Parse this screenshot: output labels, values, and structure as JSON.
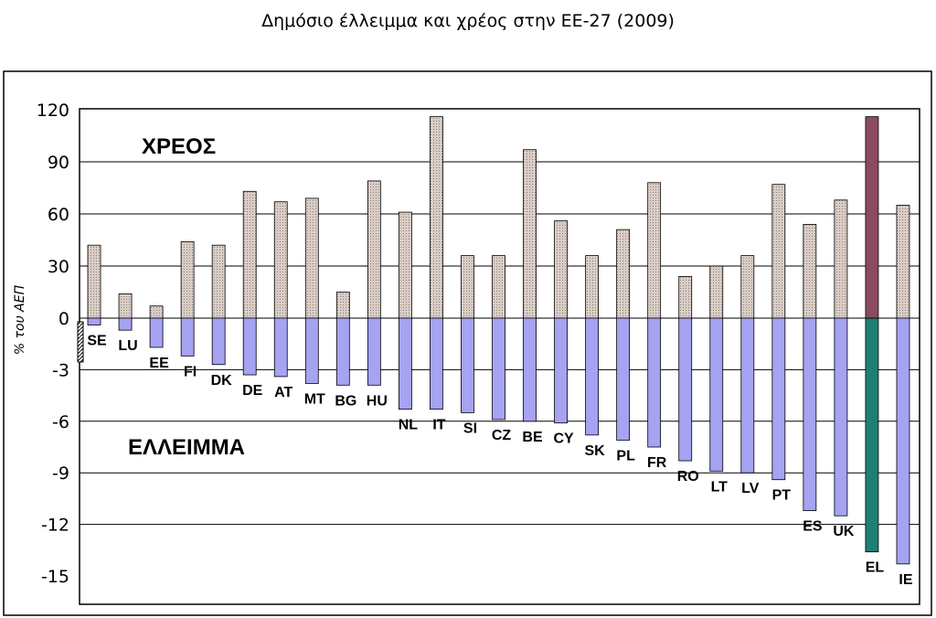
{
  "title": "Δημόσιο έλλειμμα και χρέος στην ΕΕ-27 (2009)",
  "chart_data": {
    "type": "bar",
    "title": "Δημόσιο έλλειμμα και χρέος στην ΕΕ-27 (2009)",
    "ylabel": "% του ΑΕΠ",
    "xlabel": "",
    "ylim": [
      -15,
      120
    ],
    "yticks": [
      120,
      90,
      60,
      30,
      0,
      -3,
      -6,
      -9,
      -12,
      -15
    ],
    "categories": [
      "SE",
      "LU",
      "EE",
      "FI",
      "DK",
      "DE",
      "AT",
      "MT",
      "BG",
      "HU",
      "NL",
      "IT",
      "SI",
      "CZ",
      "BE",
      "CY",
      "SK",
      "PL",
      "FR",
      "RO",
      "LT",
      "LV",
      "PT",
      "ES",
      "UK",
      "EL",
      "IE"
    ],
    "series": [
      {
        "name": "ΧΡΕΟΣ",
        "values": [
          42,
          14,
          7,
          44,
          42,
          73,
          67,
          69,
          15,
          79,
          61,
          116,
          36,
          36,
          97,
          56,
          36,
          51,
          78,
          24,
          30,
          36,
          77,
          54,
          68,
          116,
          65
        ]
      },
      {
        "name": "ΕΛΛΕΙΜΜΑ",
        "values": [
          -0.4,
          -0.7,
          -1.7,
          -2.2,
          -2.7,
          -3.3,
          -3.4,
          -3.8,
          -3.9,
          -3.9,
          -5.3,
          -5.3,
          -5.5,
          -5.9,
          -6.0,
          -6.1,
          -6.8,
          -7.1,
          -7.5,
          -8.3,
          -8.9,
          -9.0,
          -9.4,
          -11.2,
          -11.5,
          -13.6,
          -14.3
        ]
      }
    ],
    "highlight": {
      "category": "EL",
      "debt_color": "#8c4a5e",
      "deficit_color": "#1f7f72"
    },
    "annotations": {
      "debt_label": "ΧΡΕΟΣ",
      "deficit_label": "ΕΛΛΕΙΜΜΑ"
    },
    "colors": {
      "debt": "#d8c8c0",
      "deficit": "#a5a3f2",
      "grid": "#000000",
      "background": "#ffffff"
    },
    "grid": true,
    "legend": "none"
  }
}
